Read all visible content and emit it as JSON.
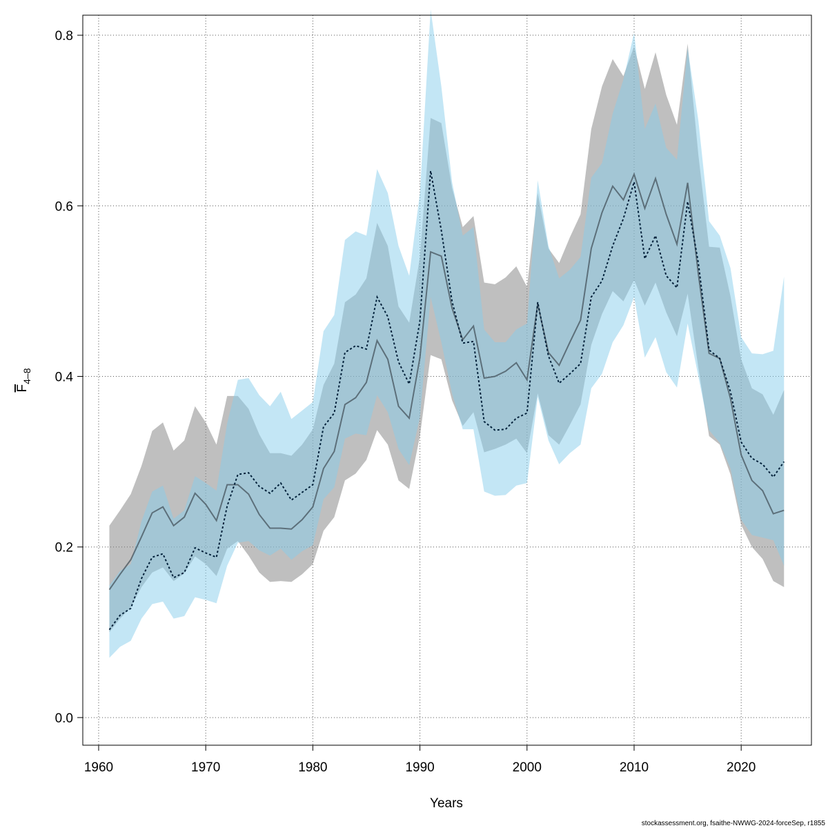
{
  "chart_data": {
    "type": "line",
    "x_label": "Years",
    "y_label": {
      "text": "F",
      "subscript": "4–8"
    },
    "footer": "stockassessment.org, fsaithe-NWWG-2024-forceSep, r1855",
    "x": [
      1961,
      1962,
      1963,
      1964,
      1965,
      1966,
      1967,
      1968,
      1969,
      1970,
      1971,
      1972,
      1973,
      1974,
      1975,
      1976,
      1977,
      1978,
      1979,
      1980,
      1981,
      1982,
      1983,
      1984,
      1985,
      1986,
      1987,
      1988,
      1989,
      1990,
      1991,
      1992,
      1993,
      1994,
      1995,
      1996,
      1997,
      1998,
      1999,
      2000,
      2001,
      2002,
      2003,
      2004,
      2005,
      2006,
      2007,
      2008,
      2009,
      2010,
      2011,
      2012,
      2013,
      2014,
      2015,
      2016,
      2017,
      2018,
      2019,
      2020,
      2021,
      2022,
      2023,
      2024
    ],
    "xlim": [
      1958.52,
      2026.56
    ],
    "xticks": [
      1960,
      1970,
      1980,
      1990,
      2000,
      2010,
      2020
    ],
    "ylim": [
      -0.0324,
      0.8235
    ],
    "yticks": [
      {
        "value": 0,
        "label": "0.0"
      },
      0.2,
      0.4,
      0.6,
      0.8
    ],
    "grid": true,
    "series": [
      {
        "color": "#3d4a52",
        "dash": false,
        "band_color": "#808080",
        "values": [
          0.15,
          0.168,
          0.185,
          0.212,
          0.24,
          0.247,
          0.225,
          0.235,
          0.263,
          0.25,
          0.231,
          0.273,
          0.273,
          0.262,
          0.238,
          0.222,
          0.222,
          0.221,
          0.232,
          0.247,
          0.292,
          0.312,
          0.367,
          0.375,
          0.393,
          0.442,
          0.42,
          0.365,
          0.351,
          0.422,
          0.546,
          0.541,
          0.48,
          0.443,
          0.459,
          0.398,
          0.4,
          0.406,
          0.416,
          0.396,
          0.485,
          0.428,
          0.413,
          0.44,
          0.466,
          0.55,
          0.592,
          0.623,
          0.607,
          0.637,
          0.597,
          0.632,
          0.59,
          0.555,
          0.627,
          0.52,
          0.427,
          0.421,
          0.374,
          0.308,
          0.278,
          0.266,
          0.239,
          0.243
        ],
        "upper": [
          0.225,
          0.243,
          0.262,
          0.295,
          0.336,
          0.346,
          0.313,
          0.325,
          0.365,
          0.346,
          0.32,
          0.377,
          0.377,
          0.362,
          0.332,
          0.31,
          0.31,
          0.307,
          0.32,
          0.338,
          0.39,
          0.415,
          0.487,
          0.496,
          0.515,
          0.58,
          0.553,
          0.482,
          0.463,
          0.54,
          0.703,
          0.697,
          0.621,
          0.575,
          0.588,
          0.51,
          0.508,
          0.516,
          0.529,
          0.505,
          0.615,
          0.55,
          0.533,
          0.563,
          0.59,
          0.69,
          0.74,
          0.772,
          0.752,
          0.787,
          0.737,
          0.78,
          0.73,
          0.695,
          0.79,
          0.66,
          0.552,
          0.551,
          0.494,
          0.42,
          0.386,
          0.379,
          0.355,
          0.384
        ],
        "lower": [
          0.1,
          0.116,
          0.129,
          0.153,
          0.17,
          0.176,
          0.16,
          0.169,
          0.189,
          0.18,
          0.166,
          0.198,
          0.207,
          0.19,
          0.17,
          0.159,
          0.16,
          0.159,
          0.168,
          0.18,
          0.219,
          0.235,
          0.278,
          0.286,
          0.302,
          0.337,
          0.32,
          0.278,
          0.268,
          0.33,
          0.425,
          0.42,
          0.372,
          0.342,
          0.358,
          0.311,
          0.315,
          0.32,
          0.327,
          0.31,
          0.38,
          0.331,
          0.32,
          0.343,
          0.367,
          0.437,
          0.473,
          0.5,
          0.488,
          0.513,
          0.483,
          0.51,
          0.475,
          0.447,
          0.497,
          0.41,
          0.33,
          0.32,
          0.285,
          0.226,
          0.2,
          0.186,
          0.16,
          0.153
        ]
      },
      {
        "color": "#00203a",
        "dash": true,
        "band_color": "#87ceeb",
        "values": [
          0.103,
          0.12,
          0.128,
          0.163,
          0.188,
          0.192,
          0.164,
          0.17,
          0.199,
          0.193,
          0.188,
          0.248,
          0.285,
          0.287,
          0.271,
          0.263,
          0.275,
          0.255,
          0.264,
          0.273,
          0.341,
          0.357,
          0.428,
          0.436,
          0.432,
          0.493,
          0.47,
          0.417,
          0.391,
          0.465,
          0.641,
          0.571,
          0.488,
          0.439,
          0.441,
          0.347,
          0.337,
          0.338,
          0.351,
          0.357,
          0.487,
          0.424,
          0.392,
          0.403,
          0.415,
          0.493,
          0.512,
          0.553,
          0.585,
          0.628,
          0.538,
          0.565,
          0.518,
          0.504,
          0.605,
          0.533,
          0.431,
          0.421,
          0.382,
          0.323,
          0.304,
          0.297,
          0.282,
          0.3
        ],
        "upper": [
          0.155,
          0.172,
          0.18,
          0.23,
          0.265,
          0.272,
          0.233,
          0.243,
          0.283,
          0.275,
          0.266,
          0.345,
          0.396,
          0.398,
          0.378,
          0.365,
          0.382,
          0.35,
          0.36,
          0.37,
          0.453,
          0.472,
          0.56,
          0.57,
          0.565,
          0.643,
          0.615,
          0.553,
          0.518,
          0.615,
          0.83,
          0.74,
          0.628,
          0.565,
          0.575,
          0.455,
          0.44,
          0.44,
          0.455,
          0.462,
          0.63,
          0.553,
          0.515,
          0.525,
          0.54,
          0.633,
          0.65,
          0.708,
          0.748,
          0.803,
          0.69,
          0.72,
          0.668,
          0.654,
          0.785,
          0.7,
          0.582,
          0.565,
          0.527,
          0.446,
          0.427,
          0.426,
          0.43,
          0.517
        ],
        "lower": [
          0.07,
          0.083,
          0.09,
          0.116,
          0.133,
          0.136,
          0.116,
          0.119,
          0.141,
          0.138,
          0.134,
          0.178,
          0.205,
          0.207,
          0.196,
          0.19,
          0.198,
          0.185,
          0.195,
          0.202,
          0.256,
          0.27,
          0.327,
          0.333,
          0.331,
          0.378,
          0.358,
          0.315,
          0.296,
          0.352,
          0.493,
          0.44,
          0.38,
          0.338,
          0.338,
          0.265,
          0.26,
          0.261,
          0.272,
          0.275,
          0.376,
          0.325,
          0.297,
          0.31,
          0.32,
          0.386,
          0.403,
          0.44,
          0.46,
          0.493,
          0.422,
          0.446,
          0.405,
          0.387,
          0.462,
          0.4,
          0.337,
          0.322,
          0.292,
          0.232,
          0.214,
          0.211,
          0.208,
          0.178
        ]
      }
    ]
  }
}
